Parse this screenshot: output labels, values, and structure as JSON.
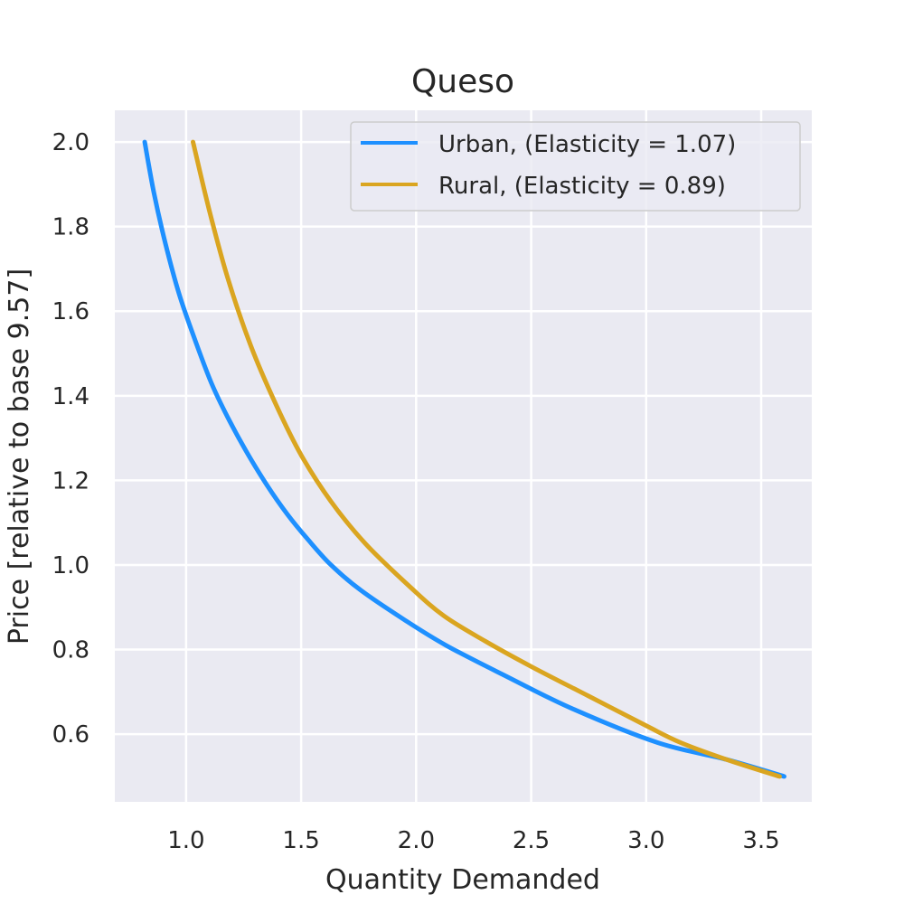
{
  "chart_data": {
    "type": "line",
    "title": "Queso",
    "xlabel": "Quantity Demanded",
    "ylabel": "Price [relative to base 9.57]",
    "xlim": [
      0.69,
      3.72
    ],
    "ylim": [
      0.44,
      2.075
    ],
    "xticks": [
      "1.0",
      "1.5",
      "2.0",
      "2.5",
      "3.0",
      "3.5"
    ],
    "yticks": [
      "0.6",
      "0.8",
      "1.0",
      "1.2",
      "1.4",
      "1.6",
      "1.8",
      "2.0"
    ],
    "grid": true,
    "legend_position": "upper right",
    "colors": {
      "background": "#eaeaf2",
      "grid": "#ffffff",
      "text": "#262626"
    },
    "series": [
      {
        "name": "Urban, (Elasticity = 1.07)",
        "color": "#1e90ff",
        "x": [
          0.82,
          0.86,
          0.91,
          0.97,
          1.04,
          1.11,
          1.18,
          1.26,
          1.35,
          1.44,
          1.53,
          1.63,
          1.76,
          1.95,
          2.13,
          2.38,
          2.68,
          3.05,
          3.35,
          3.6
        ],
        "y": [
          2.0,
          1.88,
          1.76,
          1.64,
          1.53,
          1.43,
          1.35,
          1.27,
          1.19,
          1.12,
          1.06,
          1.0,
          0.94,
          0.87,
          0.81,
          0.74,
          0.66,
          0.58,
          0.54,
          0.5
        ]
      },
      {
        "name": "Rural, (Elasticity = 0.89)",
        "color": "#daa520",
        "x": [
          1.03,
          1.1,
          1.18,
          1.28,
          1.39,
          1.5,
          1.63,
          1.78,
          1.97,
          2.12,
          2.3,
          2.5,
          2.75,
          3.0,
          3.15,
          3.35,
          3.58
        ],
        "y": [
          2.0,
          1.84,
          1.68,
          1.52,
          1.38,
          1.26,
          1.15,
          1.05,
          0.95,
          0.88,
          0.82,
          0.76,
          0.69,
          0.62,
          0.58,
          0.54,
          0.5
        ]
      }
    ]
  }
}
